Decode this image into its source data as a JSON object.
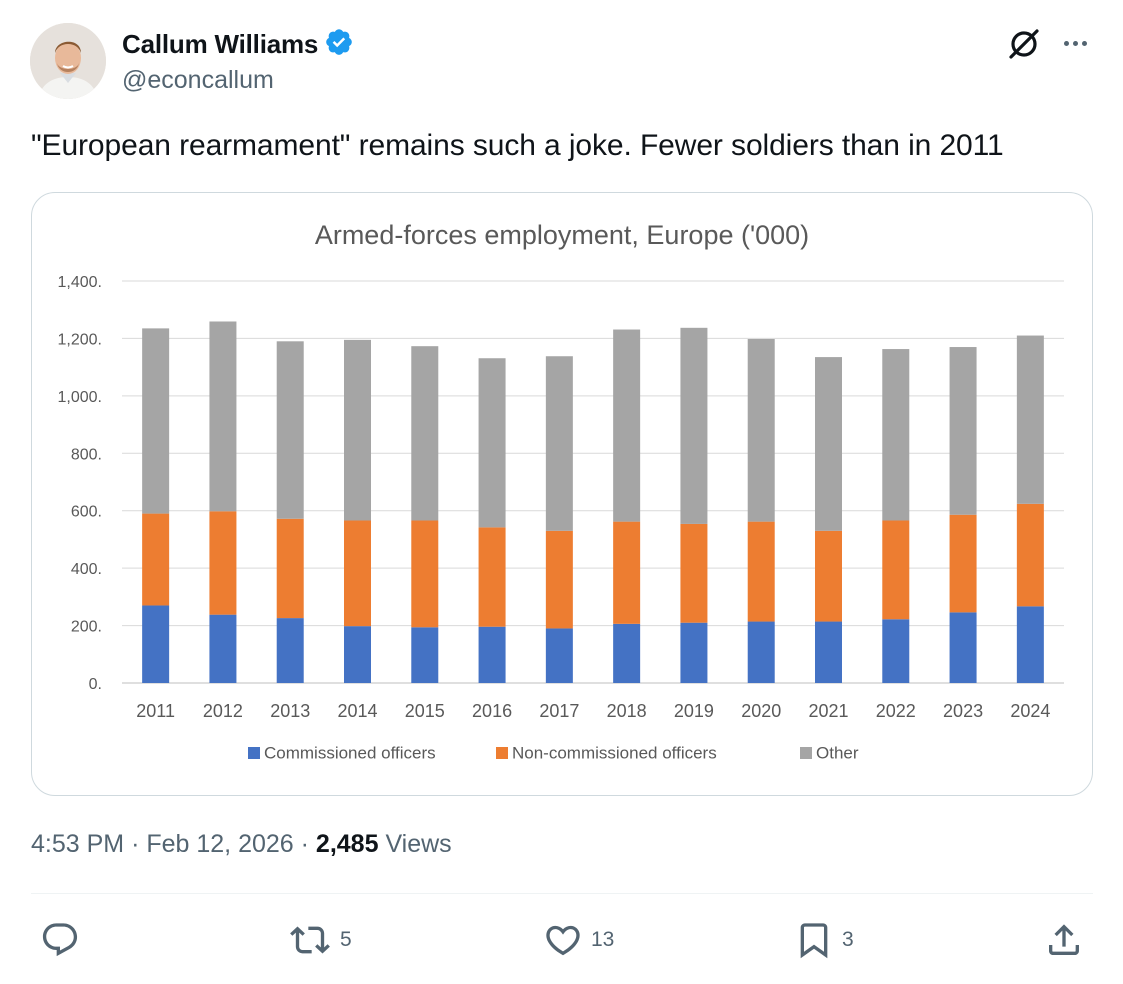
{
  "author": {
    "display_name": "Callum Williams",
    "handle": "@econcallum",
    "verified": true
  },
  "tweet": {
    "text": "\"European rearmament\" remains such a joke. Fewer soldiers than in 2011"
  },
  "meta": {
    "time": "4:53 PM",
    "separator": "·",
    "date": "Feb 12, 2026",
    "views_count": "2,485",
    "views_label": "Views"
  },
  "actions": {
    "reply_count": "",
    "retweet_count": "5",
    "like_count": "13",
    "bookmark_count": "3"
  },
  "icons": [
    "verified-badge-icon",
    "grok-icon",
    "more-icon",
    "reply-icon",
    "retweet-icon",
    "like-icon",
    "bookmark-icon",
    "share-icon"
  ],
  "colors": {
    "verified": "#1d9bf0",
    "commissioned": "#4472c4",
    "non_commissioned": "#ed7d31",
    "other": "#a5a5a5"
  },
  "chart_data": {
    "type": "bar",
    "stacked": true,
    "title": "Armed-forces employment, Europe ('000)",
    "categories": [
      "2011",
      "2012",
      "2013",
      "2014",
      "2015",
      "2016",
      "2017",
      "2018",
      "2019",
      "2020",
      "2021",
      "2022",
      "2023",
      "2024"
    ],
    "series": [
      {
        "name": "Commissioned officers",
        "color": "#4472c4",
        "values": [
          270,
          238,
          226,
          198,
          194,
          196,
          190,
          206,
          210,
          214,
          214,
          222,
          246,
          267
        ]
      },
      {
        "name": "Non-commissioned officers",
        "color": "#ed7d31",
        "values": [
          320,
          360,
          346,
          368,
          372,
          346,
          340,
          356,
          344,
          348,
          316,
          344,
          340,
          357
        ]
      },
      {
        "name": "Other",
        "color": "#a5a5a5",
        "values": [
          645,
          661,
          618,
          629,
          607,
          589,
          608,
          669,
          683,
          636,
          605,
          597,
          584,
          586
        ]
      }
    ],
    "yticks": [
      "0.",
      "200.",
      "400.",
      "600.",
      "800.",
      "1,000.",
      "1,200.",
      "1,400."
    ],
    "ylim": [
      0,
      1400
    ],
    "xlabel": "",
    "ylabel": "",
    "grid": true,
    "legend": "bottom"
  }
}
